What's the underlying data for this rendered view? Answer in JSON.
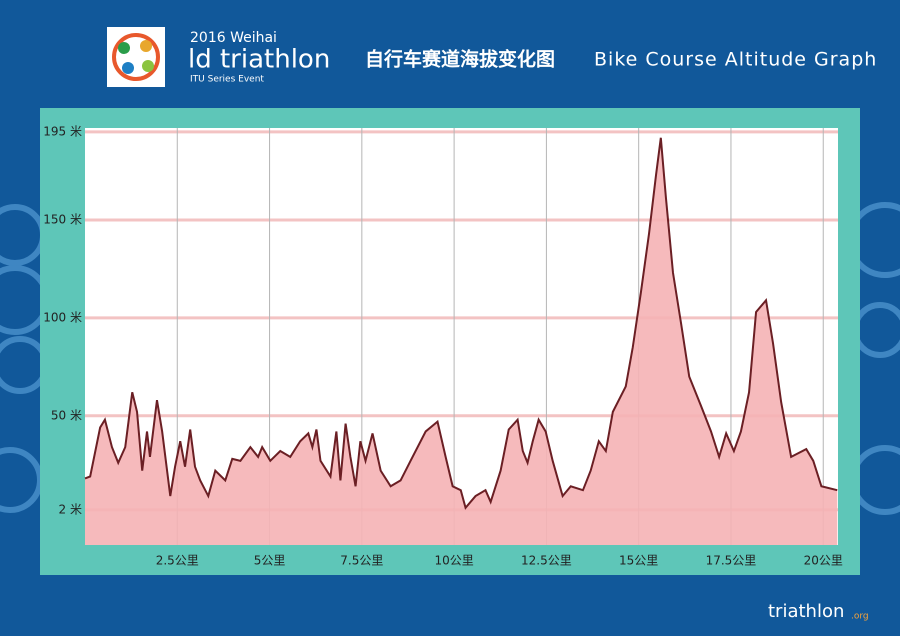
{
  "header": {
    "year": "2016 Weihai",
    "event": "ld triathlon",
    "series": "ITU Series Event",
    "title_cn": "自行车赛道海拔变化图",
    "title_en": "Bike Course Altitude Graph"
  },
  "footer": {
    "brand": "triathlon",
    "domain": ".org"
  },
  "chart_data": {
    "type": "area",
    "color": "#6b1f24",
    "fill_color": "#f5b3b5",
    "x": [
      0,
      0.14,
      0.41,
      0.54,
      0.73,
      0.9,
      1.09,
      1.28,
      1.41,
      1.55,
      1.68,
      1.76,
      1.95,
      2.09,
      2.31,
      2.44,
      2.58,
      2.71,
      2.85,
      2.98,
      3.12,
      3.34,
      3.53,
      3.8,
      3.99,
      4.21,
      4.48,
      4.69,
      4.8,
      5.02,
      5.29,
      5.56,
      5.83,
      6.05,
      6.16,
      6.27,
      6.38,
      6.65,
      6.81,
      6.92,
      7.06,
      7.19,
      7.33,
      7.46,
      7.6,
      7.79,
      8.01,
      8.28,
      8.55,
      8.82,
      9.23,
      9.55,
      9.77,
      9.96,
      10.18,
      10.31,
      10.58,
      10.85,
      10.99,
      11.26,
      11.48,
      11.72,
      11.86,
      11.99,
      12.13,
      12.29,
      12.48,
      12.67,
      12.94,
      13.16,
      13.49,
      13.7,
      13.92,
      14.11,
      14.3,
      14.65,
      14.84,
      15.06,
      15.28,
      15.47,
      15.6,
      15.74,
      15.93,
      16.15,
      16.37,
      16.69,
      16.96,
      17.18,
      17.37,
      17.58,
      17.77,
      17.99,
      18.18,
      18.45,
      18.64,
      18.86,
      19.13,
      19.54,
      19.73,
      19.95,
      20.38
    ],
    "values": [
      18,
      19,
      44,
      48,
      34,
      26,
      34,
      62,
      52,
      22,
      42,
      29,
      58,
      42,
      9,
      24,
      37,
      24,
      43,
      24,
      17,
      9,
      22,
      17,
      28,
      27,
      34,
      29,
      34,
      27,
      32,
      29,
      37,
      41,
      34,
      43,
      27,
      19,
      42,
      17,
      46,
      29,
      14,
      37,
      27,
      41,
      22,
      14,
      17,
      27,
      42,
      47,
      29,
      14,
      12,
      3,
      9,
      12,
      6,
      22,
      43,
      48,
      32,
      26,
      37,
      48,
      42,
      27,
      9,
      14,
      12,
      22,
      37,
      32,
      52,
      65,
      85,
      113,
      143,
      173,
      192,
      161,
      123,
      97,
      70,
      55,
      42,
      29,
      41,
      32,
      42,
      62,
      103,
      109,
      87,
      57,
      29,
      33,
      27,
      14,
      12
    ],
    "xlim": [
      0,
      20.4
    ],
    "ylim": [
      -16,
      197
    ],
    "xticks": [
      {
        "value": 2.5,
        "label": "2.5公里"
      },
      {
        "value": 5,
        "label": "5公里"
      },
      {
        "value": 7.5,
        "label": "7.5公里"
      },
      {
        "value": 10,
        "label": "10公里"
      },
      {
        "value": 12.5,
        "label": "12.5公里"
      },
      {
        "value": 15,
        "label": "15公里"
      },
      {
        "value": 17.5,
        "label": "17.5公里"
      },
      {
        "value": 20,
        "label": "20公里"
      }
    ],
    "yticks": [
      {
        "value": 2,
        "label": "2 米"
      },
      {
        "value": 50,
        "label": "50 米"
      },
      {
        "value": 100,
        "label": "100 米"
      },
      {
        "value": 150,
        "label": "150 米"
      },
      {
        "value": 195,
        "label": "195 米"
      }
    ],
    "grid": true
  }
}
